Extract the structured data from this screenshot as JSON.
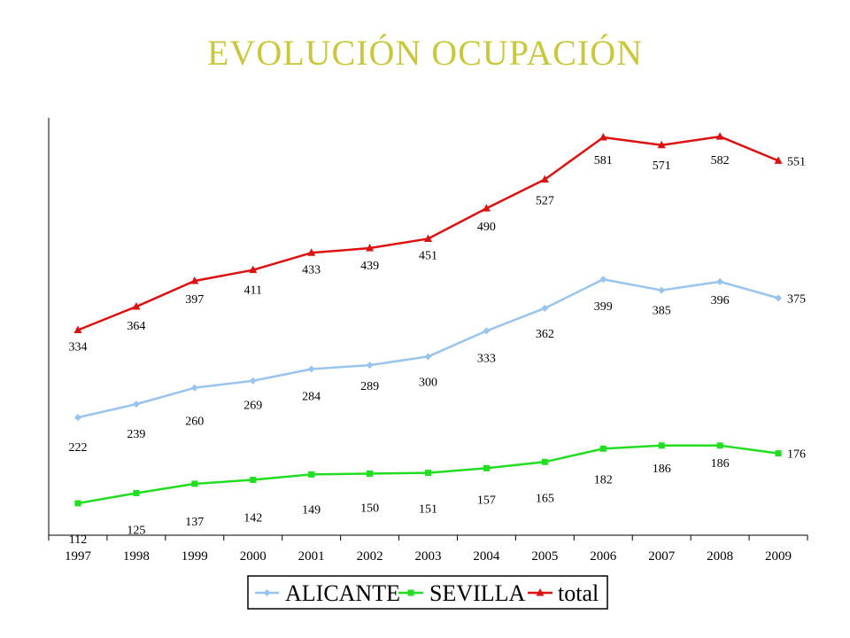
{
  "chart_data": {
    "type": "line",
    "title": "EVOLUCIÓN OCUPACIÓN",
    "xlabel": "",
    "ylabel": "",
    "x": [
      "1997",
      "1998",
      "1999",
      "2000",
      "2001",
      "2002",
      "2003",
      "2004",
      "2005",
      "2006",
      "2007",
      "2008",
      "2009"
    ],
    "ylim": [
      0,
      620
    ],
    "grid": false,
    "legend_position": "bottom",
    "series": [
      {
        "name": "ALICANTE",
        "color": "#99c4ee",
        "marker": "diamond",
        "values": [
          222,
          239,
          260,
          269,
          284,
          289,
          300,
          333,
          362,
          399,
          385,
          396,
          375
        ]
      },
      {
        "name": "SEVILLA",
        "color": "#22dd22",
        "marker": "square",
        "values": [
          112,
          125,
          137,
          142,
          149,
          150,
          151,
          157,
          165,
          182,
          186,
          186,
          176
        ]
      },
      {
        "name": "total",
        "color": "#dd1111",
        "marker": "triangle",
        "values": [
          334,
          364,
          397,
          411,
          433,
          439,
          451,
          490,
          527,
          581,
          571,
          582,
          551
        ]
      }
    ]
  }
}
